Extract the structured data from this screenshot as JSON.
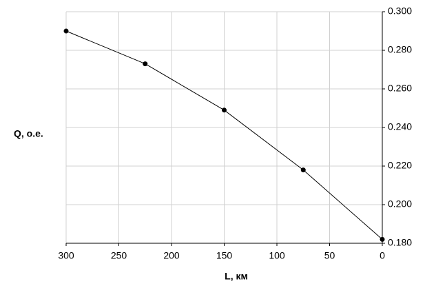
{
  "chart_data": {
    "type": "line",
    "x_label": "L, км",
    "y_label": "Q, о.е.",
    "x": [
      300,
      225,
      150,
      75,
      0
    ],
    "values": [
      0.29,
      0.273,
      0.249,
      0.218,
      0.182
    ],
    "color": "#000000",
    "xlim": [
      300,
      0
    ],
    "xticks": [
      300,
      250,
      200,
      150,
      100,
      50,
      0
    ],
    "ylim": [
      0.18,
      0.3
    ],
    "yticks": [
      {
        "value": 0.18,
        "label": "0.180"
      },
      {
        "value": 0.2,
        "label": "0.200"
      },
      {
        "value": 0.22,
        "label": "0.220"
      },
      {
        "value": 0.24,
        "label": "0.240"
      },
      {
        "value": 0.26,
        "label": "0.260"
      },
      {
        "value": 0.28,
        "label": "0.280"
      },
      {
        "value": 0.3,
        "label": "0.300"
      }
    ],
    "grid": true
  }
}
